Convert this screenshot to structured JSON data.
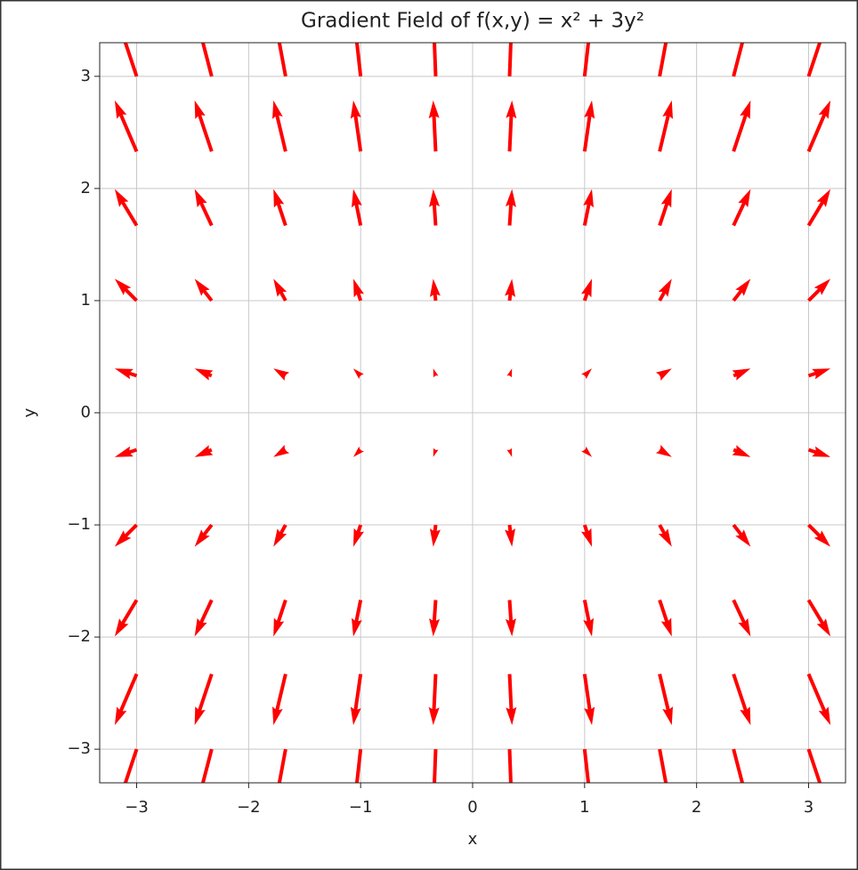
{
  "chart_data": {
    "type": "quiver",
    "title": "Gradient Field of f(x,y) = x² + 3y²",
    "xlabel": "x",
    "ylabel": "y",
    "x": [
      -3,
      -2.33,
      -1.67,
      -1,
      -0.33,
      0.33,
      1,
      1.67,
      2.33,
      3
    ],
    "y": [
      -3,
      -2.33,
      -1.67,
      -1,
      -0.33,
      0.33,
      1,
      1.67,
      2.33,
      3
    ],
    "u": [
      -6,
      -4.67,
      -3.33,
      -2,
      -0.67,
      0.67,
      2,
      3.33,
      4.67,
      6
    ],
    "v": [
      -18,
      -14,
      -10,
      -6,
      -2,
      2,
      6,
      10,
      14,
      18
    ],
    "color": "#ff0000",
    "xlim": [
      -3.33,
      3.33
    ],
    "ylim": [
      -3.3,
      3.3
    ],
    "xticks": [
      {
        "value": -3,
        "label": "−3"
      },
      {
        "value": -2,
        "label": "−2"
      },
      {
        "value": -1,
        "label": "−1"
      },
      0,
      1,
      2,
      3
    ],
    "yticks": [
      {
        "value": -3,
        "label": "−3"
      },
      {
        "value": -2,
        "label": "−2"
      },
      {
        "value": -1,
        "label": "−1"
      },
      0,
      1,
      2,
      3
    ],
    "grid": true
  }
}
